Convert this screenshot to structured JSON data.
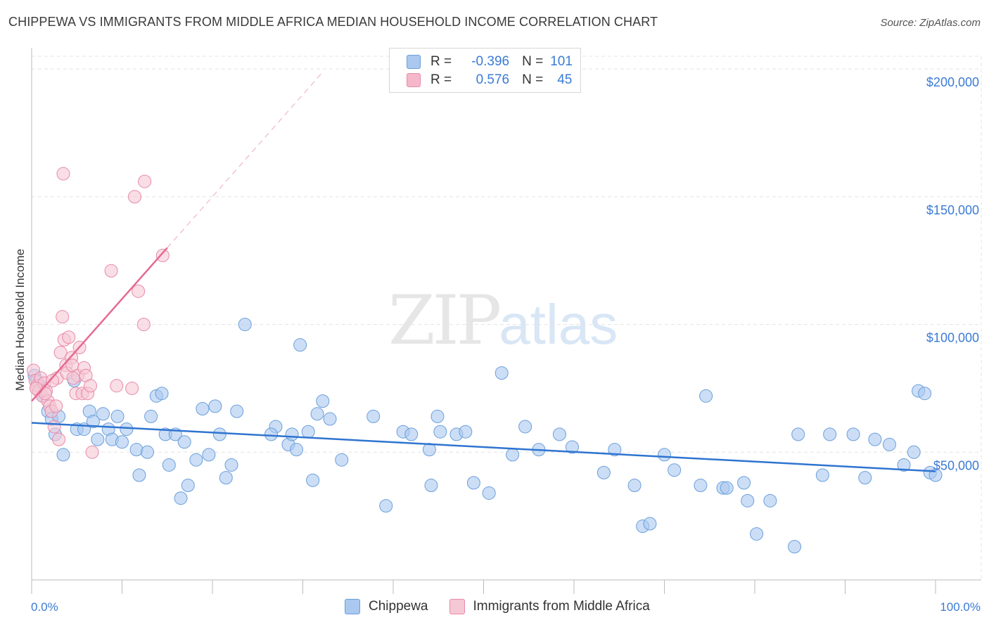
{
  "title": "CHIPPEWA VS IMMIGRANTS FROM MIDDLE AFRICA MEDIAN HOUSEHOLD INCOME CORRELATION CHART",
  "source": "Source: ZipAtlas.com",
  "watermark": {
    "zip": "ZIP",
    "atlas": "atlas"
  },
  "legend": {
    "rows": [
      {
        "r_label": "R =",
        "r_value": "-0.396",
        "n_label": "N =",
        "n_value": "101",
        "color": "#aac8f0",
        "border": "#6a9fdb"
      },
      {
        "r_label": "R =",
        "r_value": "0.576",
        "n_label": "N =",
        "n_value": "45",
        "color": "#f5b8cb",
        "border": "#e889a8"
      }
    ]
  },
  "bottom_legend": [
    {
      "label": "Chippewa",
      "color": "#aac8f0",
      "border": "#6a9fdb"
    },
    {
      "label": "Immigrants from Middle Africa",
      "color": "#f5c8d6",
      "border": "#e889a8"
    }
  ],
  "chart_data": {
    "type": "scatter",
    "ylabel": "Median Household Income",
    "xlim": [
      0,
      100
    ],
    "ylim": [
      0,
      205000
    ],
    "x_tick_labels": [
      "0.0%",
      "100.0%"
    ],
    "y_ticks": [
      {
        "value": 50000,
        "label": "$50,000"
      },
      {
        "value": 100000,
        "label": "$100,000"
      },
      {
        "value": 150000,
        "label": "$150,000"
      },
      {
        "value": 200000,
        "label": "$200,000"
      }
    ],
    "grid": true,
    "series": [
      {
        "name": "Chippewa",
        "color": "#6a9fdb",
        "fill": "#aac8f0",
        "trend": {
          "x0": 0,
          "y0": 61500,
          "x1": 100,
          "y1": 42500,
          "color": "#2f74d0",
          "dashed_extension": false
        },
        "points": [
          [
            0.3,
            80000
          ],
          [
            0.6,
            78000
          ],
          [
            0.9,
            76000
          ],
          [
            1.2,
            72000
          ],
          [
            1.8,
            66000
          ],
          [
            2.2,
            63000
          ],
          [
            2.6,
            57000
          ],
          [
            3.0,
            64000
          ],
          [
            3.5,
            49000
          ],
          [
            4.7,
            78000
          ],
          [
            5.0,
            59000
          ],
          [
            5.8,
            59000
          ],
          [
            6.4,
            66000
          ],
          [
            7.3,
            55000
          ],
          [
            7.9,
            65000
          ],
          [
            8.5,
            59000
          ],
          [
            8.9,
            55000
          ],
          [
            9.5,
            64000
          ],
          [
            10.0,
            54000
          ],
          [
            10.5,
            59000
          ],
          [
            11.6,
            51000
          ],
          [
            11.9,
            41000
          ],
          [
            12.8,
            50000
          ],
          [
            13.2,
            64000
          ],
          [
            13.8,
            72000
          ],
          [
            14.4,
            73000
          ],
          [
            14.8,
            57000
          ],
          [
            15.2,
            45000
          ],
          [
            15.9,
            57000
          ],
          [
            16.5,
            32000
          ],
          [
            16.9,
            54000
          ],
          [
            17.3,
            37000
          ],
          [
            18.2,
            47000
          ],
          [
            18.9,
            67000
          ],
          [
            19.6,
            49000
          ],
          [
            20.3,
            68000
          ],
          [
            20.8,
            57000
          ],
          [
            21.5,
            40000
          ],
          [
            22.1,
            45000
          ],
          [
            22.7,
            66000
          ],
          [
            27.0,
            60000
          ],
          [
            28.4,
            53000
          ],
          [
            28.8,
            57000
          ],
          [
            29.3,
            51000
          ],
          [
            29.7,
            92000
          ],
          [
            30.6,
            58000
          ],
          [
            31.1,
            39000
          ],
          [
            31.6,
            65000
          ],
          [
            32.2,
            70000
          ],
          [
            33.0,
            63000
          ],
          [
            34.3,
            47000
          ],
          [
            37.8,
            64000
          ],
          [
            39.2,
            29000
          ],
          [
            41.1,
            58000
          ],
          [
            42.0,
            57000
          ],
          [
            44.0,
            51000
          ],
          [
            44.2,
            37000
          ],
          [
            44.9,
            64000
          ],
          [
            45.2,
            58000
          ],
          [
            47.0,
            57000
          ],
          [
            48.0,
            58000
          ],
          [
            48.9,
            38000
          ],
          [
            50.6,
            34000
          ],
          [
            52.0,
            81000
          ],
          [
            53.2,
            49000
          ],
          [
            54.6,
            60000
          ],
          [
            56.1,
            51000
          ],
          [
            58.4,
            57000
          ],
          [
            59.8,
            52000
          ],
          [
            63.3,
            42000
          ],
          [
            64.5,
            51000
          ],
          [
            66.7,
            37000
          ],
          [
            67.6,
            21000
          ],
          [
            68.4,
            22000
          ],
          [
            70.0,
            49000
          ],
          [
            71.1,
            43000
          ],
          [
            74.0,
            37000
          ],
          [
            74.6,
            72000
          ],
          [
            76.5,
            36000
          ],
          [
            76.9,
            36000
          ],
          [
            78.8,
            38000
          ],
          [
            79.2,
            31000
          ],
          [
            80.2,
            18000
          ],
          [
            81.7,
            31000
          ],
          [
            84.4,
            13000
          ],
          [
            84.8,
            57000
          ],
          [
            87.5,
            41000
          ],
          [
            88.3,
            57000
          ],
          [
            90.9,
            57000
          ],
          [
            92.2,
            40000
          ],
          [
            93.3,
            55000
          ],
          [
            94.9,
            53000
          ],
          [
            96.5,
            45000
          ],
          [
            97.6,
            50000
          ],
          [
            98.1,
            74000
          ],
          [
            98.8,
            73000
          ],
          [
            99.4,
            42000
          ],
          [
            100.0,
            41000
          ],
          [
            23.6,
            100000
          ],
          [
            26.5,
            57000
          ],
          [
            6.8,
            62000
          ]
        ]
      },
      {
        "name": "Immigrants from Middle Africa",
        "color": "#e889a8",
        "fill": "#f5c8d6",
        "trend": {
          "x0": 0,
          "y0": 70000,
          "x1": 15,
          "y1": 130000,
          "color": "#e56a91",
          "dashed_x_end": 32
        },
        "points": [
          [
            0.2,
            82000
          ],
          [
            0.4,
            78000
          ],
          [
            0.6,
            76000
          ],
          [
            0.8,
            74000
          ],
          [
            1.0,
            79000
          ],
          [
            1.2,
            72000
          ],
          [
            1.4,
            77000
          ],
          [
            1.6,
            74000
          ],
          [
            1.8,
            70000
          ],
          [
            2.0,
            68000
          ],
          [
            2.2,
            66000
          ],
          [
            2.5,
            60000
          ],
          [
            2.7,
            68000
          ],
          [
            2.8,
            79000
          ],
          [
            3.0,
            55000
          ],
          [
            3.2,
            89000
          ],
          [
            3.4,
            103000
          ],
          [
            3.6,
            94000
          ],
          [
            3.8,
            84000
          ],
          [
            3.9,
            81000
          ],
          [
            4.1,
            95000
          ],
          [
            4.4,
            87000
          ],
          [
            4.5,
            84000
          ],
          [
            4.9,
            73000
          ],
          [
            5.1,
            80000
          ],
          [
            5.3,
            91000
          ],
          [
            5.6,
            73000
          ],
          [
            5.8,
            83000
          ],
          [
            6.0,
            80000
          ],
          [
            6.2,
            73000
          ],
          [
            6.5,
            76000
          ],
          [
            3.5,
            159000
          ],
          [
            8.8,
            121000
          ],
          [
            9.4,
            76000
          ],
          [
            11.1,
            75000
          ],
          [
            11.4,
            150000
          ],
          [
            11.8,
            113000
          ],
          [
            12.4,
            100000
          ],
          [
            12.5,
            156000
          ],
          [
            14.5,
            127000
          ],
          [
            6.7,
            50000
          ],
          [
            4.6,
            79000
          ],
          [
            2.3,
            78000
          ],
          [
            1.5,
            73000
          ],
          [
            0.5,
            75000
          ]
        ]
      }
    ]
  }
}
